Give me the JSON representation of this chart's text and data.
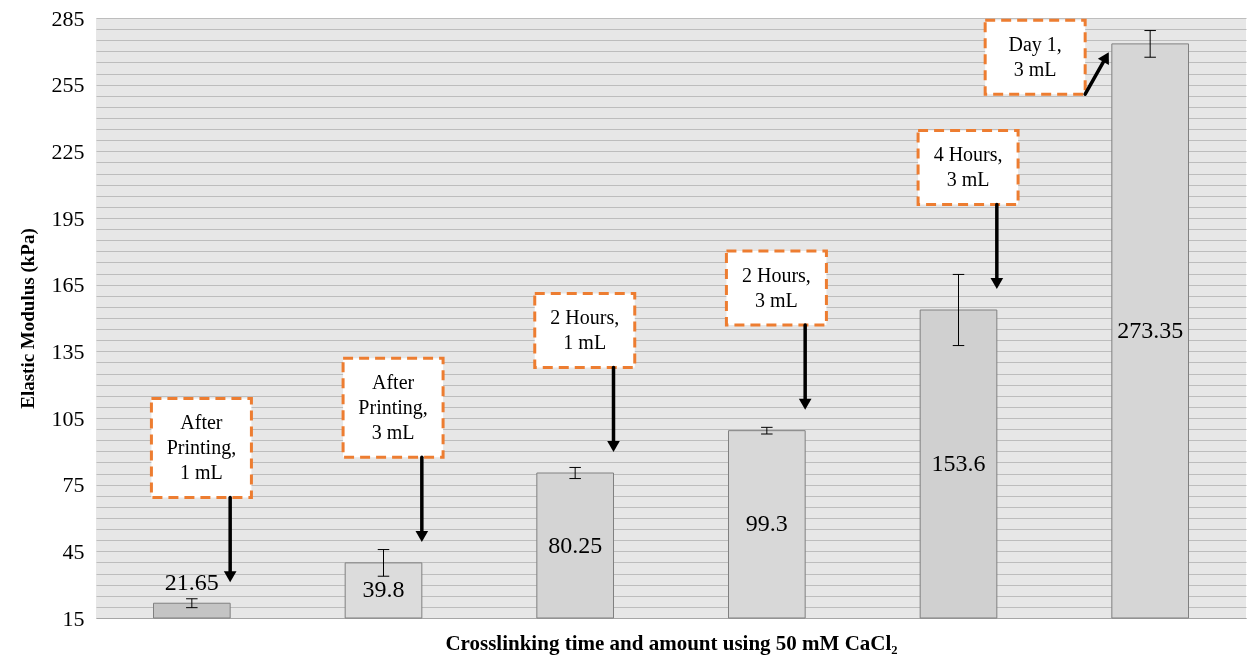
{
  "chart_data": {
    "type": "bar",
    "xlabel": "Crosslinking time and amount using 50 mM CaCl₂",
    "ylabel": "Elastic Modulus (kPa)",
    "categories": [
      null,
      null,
      null,
      null,
      null,
      null
    ],
    "values": [
      21.65,
      39.8,
      80.25,
      99.3,
      153.6,
      273.35
    ],
    "errors": [
      2,
      6,
      2.5,
      1.5,
      16,
      6
    ],
    "colors": [
      "#c4c4c4",
      "#dcdcdc",
      "#d4d4d4",
      "#d8d8d8",
      "#d0d0d0",
      "#d6d6d6"
    ],
    "data_labels": true,
    "ylim": [
      15,
      285
    ],
    "yticks": [
      15,
      {
        "value": 20,
        "label": null
      },
      {
        "value": 25,
        "label": null
      },
      {
        "value": 30,
        "label": null
      },
      {
        "value": 35,
        "label": null
      },
      {
        "value": 40,
        "label": null
      },
      45,
      {
        "value": 50,
        "label": null
      },
      {
        "value": 55,
        "label": null
      },
      {
        "value": 60,
        "label": null
      },
      {
        "value": 65,
        "label": null
      },
      {
        "value": 70,
        "label": null
      },
      75,
      {
        "value": 80,
        "label": null
      },
      {
        "value": 85,
        "label": null
      },
      {
        "value": 90,
        "label": null
      },
      {
        "value": 95,
        "label": null
      },
      {
        "value": 100,
        "label": null
      },
      105,
      {
        "value": 110,
        "label": null
      },
      {
        "value": 115,
        "label": null
      },
      {
        "value": 120,
        "label": null
      },
      {
        "value": 125,
        "label": null
      },
      {
        "value": 130,
        "label": null
      },
      135,
      {
        "value": 140,
        "label": null
      },
      {
        "value": 145,
        "label": null
      },
      {
        "value": 150,
        "label": null
      },
      {
        "value": 155,
        "label": null
      },
      {
        "value": 160,
        "label": null
      },
      165,
      {
        "value": 170,
        "label": null
      },
      {
        "value": 175,
        "label": null
      },
      {
        "value": 180,
        "label": null
      },
      {
        "value": 185,
        "label": null
      },
      {
        "value": 190,
        "label": null
      },
      195,
      {
        "value": 200,
        "label": null
      },
      {
        "value": 205,
        "label": null
      },
      {
        "value": 210,
        "label": null
      },
      {
        "value": 215,
        "label": null
      },
      {
        "value": 220,
        "label": null
      },
      225,
      {
        "value": 230,
        "label": null
      },
      {
        "value": 235,
        "label": null
      },
      {
        "value": 240,
        "label": null
      },
      {
        "value": 245,
        "label": null
      },
      {
        "value": 250,
        "label": null
      },
      255,
      {
        "value": 260,
        "label": null
      },
      {
        "value": 265,
        "label": null
      },
      {
        "value": 270,
        "label": null
      },
      {
        "value": 275,
        "label": null
      },
      {
        "value": 280,
        "label": null
      },
      285
    ],
    "grid": true,
    "annotations": [
      "After Printing, 1 mL",
      "After Printing, 3 mL",
      "2 Hours, 1 mL",
      "2 Hours, 3 mL",
      "4 Hours, 3 mL",
      "Day 1, 3 mL"
    ]
  }
}
